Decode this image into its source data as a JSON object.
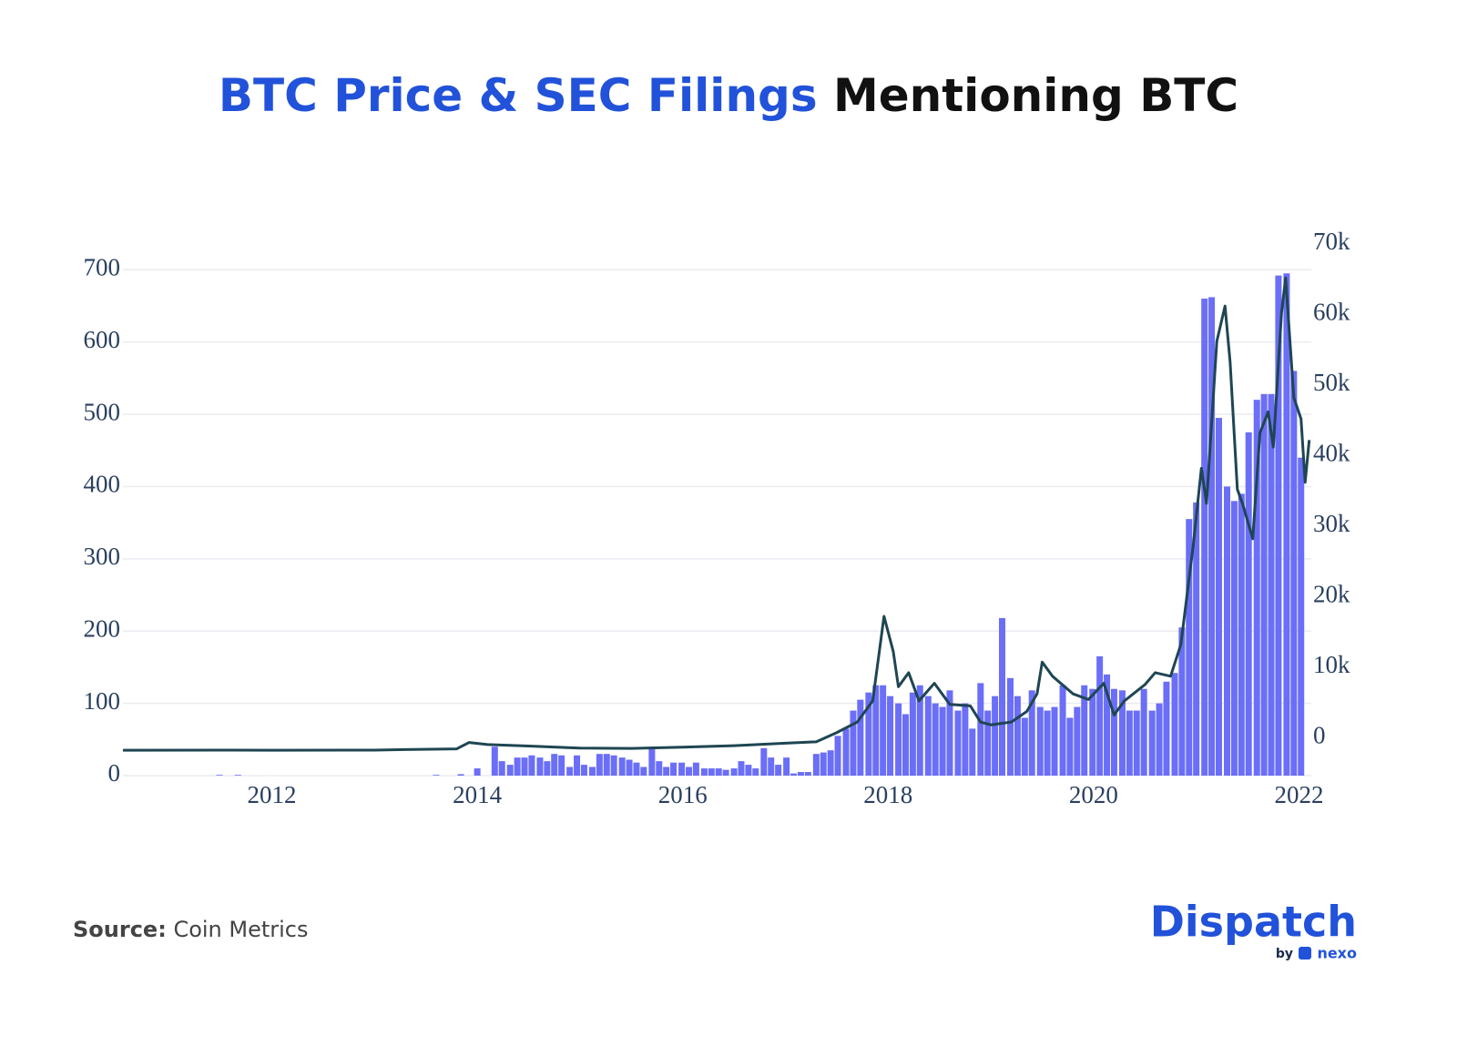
{
  "chart_data": {
    "type": "combo",
    "title": {
      "highlight": "BTC Price & SEC Filings",
      "rest": "Mentioning BTC"
    },
    "xlim": [
      2010.55,
      2022.12
    ],
    "xticks": [
      2012,
      2014,
      2016,
      2018,
      2020,
      2022
    ],
    "ylim": [
      0,
      718
    ],
    "yticks": [
      0,
      100,
      200,
      300,
      400,
      500,
      600,
      700
    ],
    "y2lim": [
      -3600,
      70000
    ],
    "y2ticks": [
      0,
      {
        "value": 10000,
        "label": "10k"
      },
      {
        "value": 20000,
        "label": "20k"
      },
      {
        "value": 30000,
        "label": "30k"
      },
      {
        "value": 40000,
        "label": "40k"
      },
      {
        "value": 50000,
        "label": "50k"
      },
      {
        "value": 60000,
        "label": "60k"
      },
      {
        "value": 70000,
        "label": "70k"
      }
    ],
    "grid": true,
    "series": [
      {
        "type": "bar",
        "color": "#6b6ef7",
        "axis": "y",
        "x": [
          2011.49,
          2011.67,
          2013.6,
          2013.84,
          2014.0,
          2014.17,
          2014.24,
          2014.32,
          2014.39,
          2014.46,
          2014.53,
          2014.61,
          2014.68,
          2014.75,
          2014.82,
          2014.9,
          2014.97,
          2015.04,
          2015.12,
          2015.19,
          2015.26,
          2015.33,
          2015.41,
          2015.48,
          2015.55,
          2015.62,
          2015.7,
          2015.77,
          2015.84,
          2015.91,
          2015.99,
          2016.06,
          2016.13,
          2016.21,
          2016.28,
          2016.35,
          2016.42,
          2016.5,
          2016.57,
          2016.64,
          2016.71,
          2016.79,
          2016.86,
          2016.93,
          2017.01,
          2017.08,
          2017.15,
          2017.22,
          2017.3,
          2017.37,
          2017.44,
          2017.51,
          2017.59,
          2017.66,
          2017.73,
          2017.81,
          2017.88,
          2017.95,
          2018.02,
          2018.1,
          2018.17,
          2018.24,
          2018.31,
          2018.39,
          2018.46,
          2018.53,
          2018.6,
          2018.68,
          2018.75,
          2018.82,
          2018.9,
          2018.97,
          2019.04,
          2019.11,
          2019.19,
          2019.26,
          2019.33,
          2019.4,
          2019.48,
          2019.55,
          2019.62,
          2019.7,
          2019.77,
          2019.84,
          2019.91,
          2019.99,
          2020.06,
          2020.13,
          2020.2,
          2020.28,
          2020.35,
          2020.42,
          2020.49,
          2020.57,
          2020.64,
          2020.71,
          2020.79,
          2020.86,
          2020.93,
          2021.0,
          2021.08,
          2021.15,
          2021.22,
          2021.3,
          2021.37,
          2021.44,
          2021.51,
          2021.59,
          2021.66,
          2021.73,
          2021.8,
          2021.88,
          2021.95,
          2022.02
        ],
        "values": [
          1,
          1,
          1,
          2,
          10,
          40,
          20,
          15,
          25,
          25,
          28,
          25,
          20,
          30,
          28,
          12,
          28,
          15,
          12,
          30,
          30,
          28,
          25,
          22,
          18,
          12,
          38,
          20,
          12,
          18,
          18,
          12,
          18,
          10,
          10,
          10,
          8,
          10,
          20,
          15,
          10,
          38,
          25,
          15,
          25,
          3,
          5,
          5,
          30,
          32,
          35,
          55,
          65,
          90,
          105,
          115,
          125,
          125,
          110,
          100,
          85,
          115,
          125,
          110,
          100,
          95,
          118,
          90,
          100,
          65,
          128,
          90,
          110,
          218,
          135,
          110,
          80,
          118,
          95,
          90,
          95,
          125,
          80,
          95,
          125,
          120,
          165,
          140,
          120,
          118,
          90,
          90,
          120,
          90,
          100,
          130,
          142,
          205,
          355,
          378,
          660,
          662,
          495,
          400,
          380,
          390,
          475,
          520,
          528,
          528,
          692,
          695,
          560,
          440
        ]
      },
      {
        "type": "line",
        "color": "#1e4652",
        "axis": "y2",
        "x": [
          2010.55,
          2011.5,
          2012.0,
          2013.0,
          2013.3,
          2013.8,
          2013.92,
          2014.1,
          2014.5,
          2015.0,
          2015.5,
          2016.0,
          2016.5,
          2017.0,
          2017.3,
          2017.5,
          2017.7,
          2017.85,
          2017.96,
          2018.05,
          2018.1,
          2018.2,
          2018.3,
          2018.45,
          2018.6,
          2018.8,
          2018.9,
          2019.0,
          2019.2,
          2019.35,
          2019.45,
          2019.5,
          2019.6,
          2019.8,
          2019.95,
          2020.1,
          2020.2,
          2020.3,
          2020.5,
          2020.6,
          2020.75,
          2020.85,
          2020.97,
          2021.05,
          2021.1,
          2021.2,
          2021.28,
          2021.33,
          2021.4,
          2021.45,
          2021.55,
          2021.62,
          2021.7,
          2021.75,
          2021.83,
          2021.87,
          2021.95,
          2022.02,
          2022.06,
          2022.1
        ],
        "values": [
          0,
          15,
          5,
          13,
          100,
          200,
          1100,
          800,
          600,
          300,
          250,
          430,
          650,
          1000,
          1200,
          2500,
          4000,
          7000,
          19000,
          14000,
          9000,
          11000,
          7000,
          9500,
          6500,
          6300,
          4000,
          3600,
          4000,
          5500,
          8000,
          12500,
          10500,
          8000,
          7200,
          9500,
          5000,
          7000,
          9300,
          11000,
          10500,
          15000,
          29000,
          40000,
          35000,
          58000,
          63000,
          55000,
          37000,
          35000,
          30000,
          45000,
          48000,
          43000,
          62000,
          67000,
          50000,
          47000,
          38000,
          44000
        ]
      }
    ]
  },
  "footer": {
    "source_label": "Source:",
    "source": "Coin Metrics"
  },
  "logo": {
    "name": "Dispatch",
    "by": "by",
    "partner": "nexo"
  }
}
